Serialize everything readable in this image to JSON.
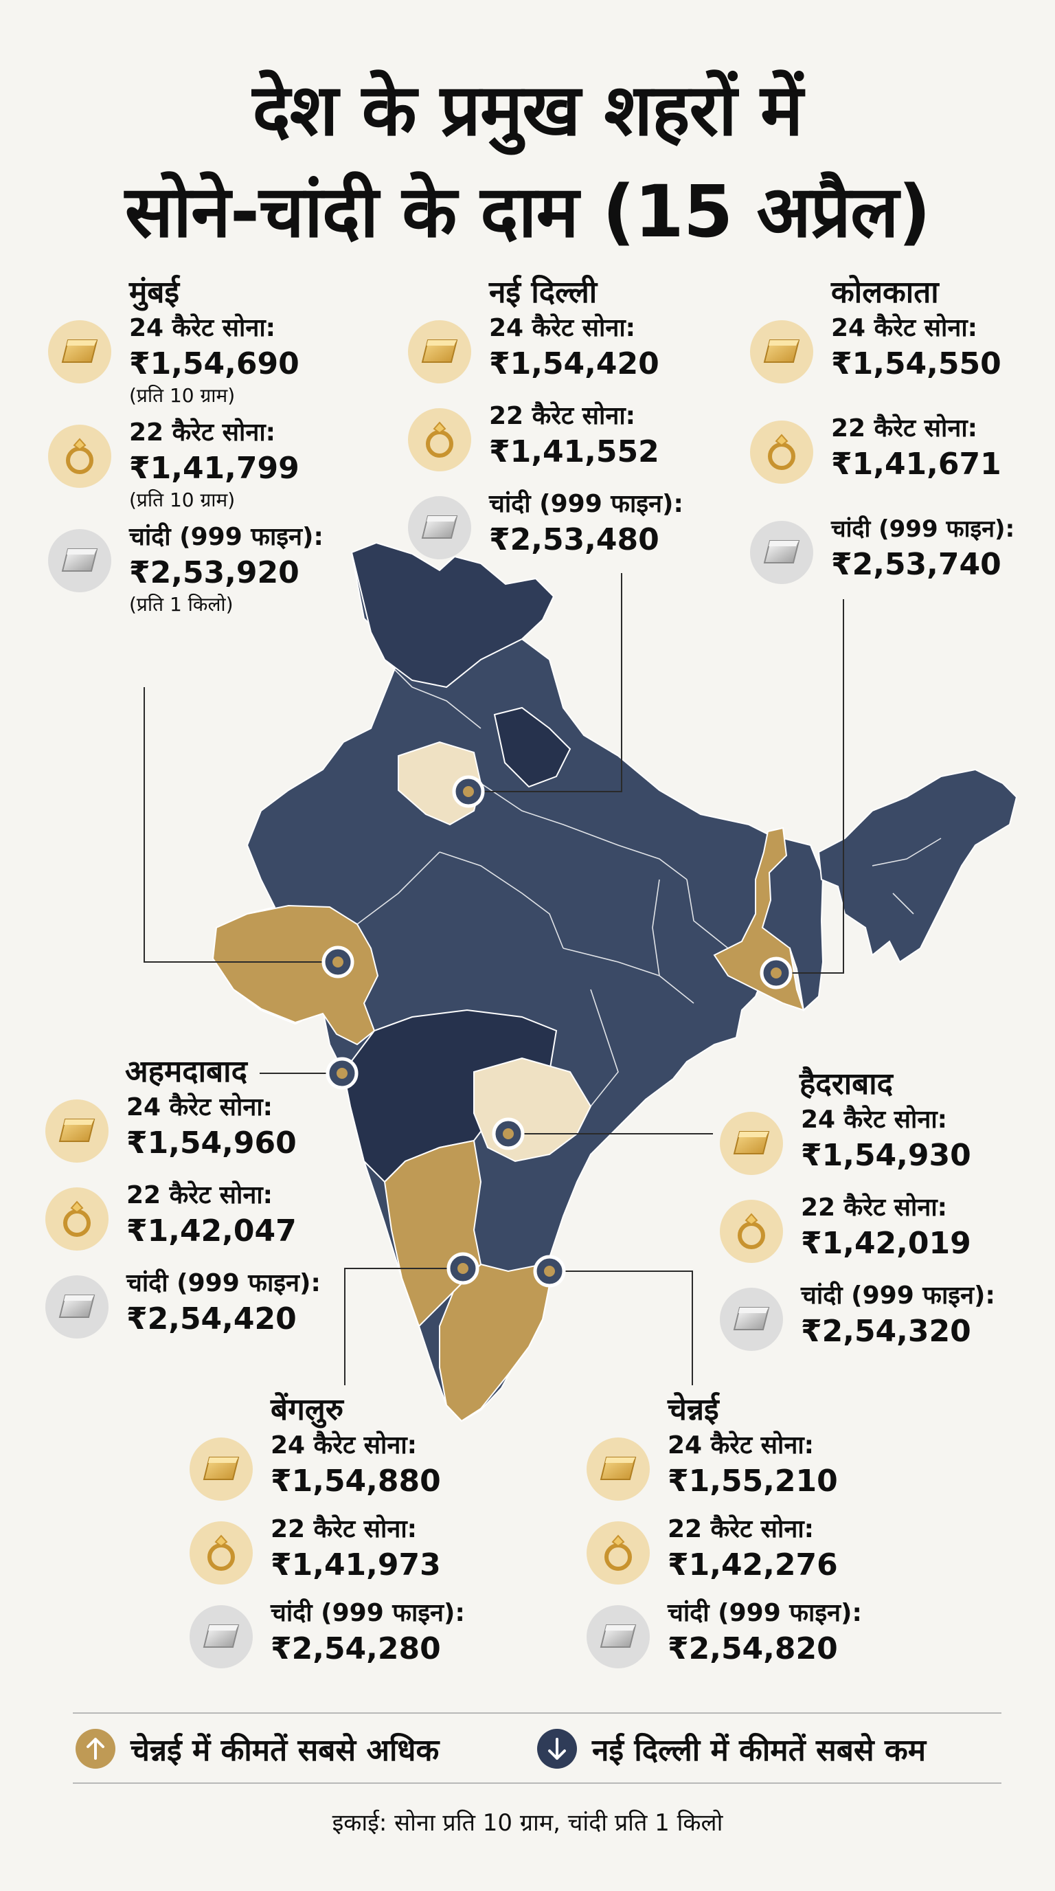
{
  "title": {
    "line1": "देश के प्रमुख शहरों में",
    "line2": "सोने-चांदी के दाम (15 अप्रैल)"
  },
  "labels": {
    "gold24": "24 कैरेट सोना:",
    "gold22": "22 कैरेट सोना:",
    "silver": "चांदी (999 फाइन):"
  },
  "icons": {
    "gold24": "gold-bar-icon",
    "gold22": "gold-ring-icon",
    "silver": "silver-bar-icon"
  },
  "cities": {
    "mumbai": {
      "name": "मुंबई",
      "gold24": "₹1,54,690",
      "gold22": "₹1,41,799",
      "silver": "₹2,53,920",
      "unit_gold24": "(प्रति 10 ग्राम)",
      "unit_gold22": "(प्रति 10 ग्राम)",
      "unit_silver": "(प्रति 1 किलो)"
    },
    "delhi": {
      "name": "नई दिल्ली",
      "gold24": "₹1,54,420",
      "gold22": "₹1,41,552",
      "silver": "₹2,53,480"
    },
    "kolkata": {
      "name": "कोलकाता",
      "gold24": "₹1,54,550",
      "gold22": "₹1,41,671",
      "silver": "₹2,53,740"
    },
    "ahmedabad": {
      "name": "अहमदाबाद",
      "gold24": "₹1,54,960",
      "gold22": "₹1,42,047",
      "silver": "₹2,54,420"
    },
    "hyderabad": {
      "name": "हैदराबाद",
      "gold24": "₹1,54,930",
      "gold22": "₹1,42,019",
      "silver": "₹2,54,320"
    },
    "bengaluru": {
      "name": "बेंगलुरु",
      "gold24": "₹1,54,880",
      "gold22": "₹1,41,973",
      "silver": "₹2,54,280"
    },
    "chennai": {
      "name": "चेन्नई",
      "gold24": "₹1,55,210",
      "gold22": "₹1,42,276",
      "silver": "₹2,54,820"
    }
  },
  "legend": {
    "highest": "चेन्नई में कीमतें सबसे अधिक",
    "lowest": "नई दिल्ली में कीमतें सबसे कम",
    "highest_icon": "arrow-up-icon",
    "lowest_icon": "arrow-down-icon"
  },
  "footer": "इकाई: सोना प्रति 10 ग्राम, चांदी प्रति 1 किलो",
  "colors": {
    "navy": "#3b4a66",
    "navy_dark": "#26324d",
    "gold": "#bf9a55",
    "cream": "#efe1c3",
    "bg": "#f6f5f1"
  }
}
